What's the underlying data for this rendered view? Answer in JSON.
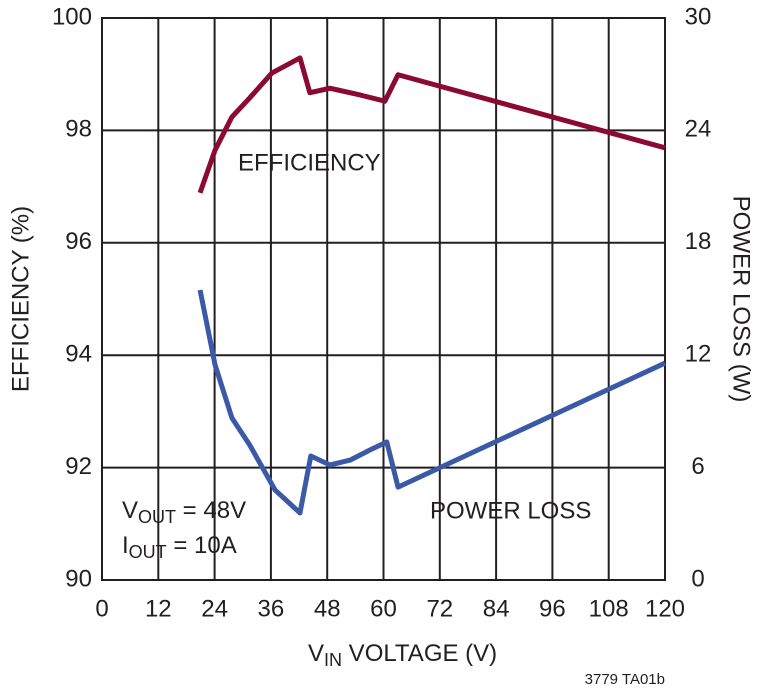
{
  "chart_data": {
    "type": "line",
    "x_label": {
      "main": "V",
      "sub": "IN",
      "rest": " VOLTAGE (V)"
    },
    "y_label": "EFFICIENCY (%)",
    "y2_label": "POWER LOSS (W)",
    "xlim": [
      0,
      120
    ],
    "xticks": [
      0,
      12,
      24,
      36,
      48,
      60,
      72,
      84,
      96,
      108,
      120
    ],
    "ylim": [
      90,
      100
    ],
    "yticks": [
      90,
      92,
      94,
      96,
      98,
      100
    ],
    "y2lim": [
      0,
      30
    ],
    "y2ticks": [
      0,
      6,
      12,
      18,
      24,
      30
    ],
    "grid": true,
    "series": [
      {
        "name": "EFFICIENCY",
        "color": "#8b0a32",
        "x": [
          20.9,
          24.1,
          27.7,
          31.5,
          36.2,
          42.2,
          44.3,
          48.6,
          55,
          60.3,
          63.1,
          120
        ],
        "values": [
          96.89,
          97.65,
          98.24,
          98.58,
          99.02,
          99.29,
          98.67,
          98.75,
          98.63,
          98.52,
          98.99,
          97.69
        ]
      },
      {
        "name": "POWER LOSS",
        "color": "#3a5aa8",
        "axis": "y2",
        "x": [
          20.9,
          24.1,
          27.7,
          31.5,
          36.9,
          42.2,
          44.5,
          48.6,
          52.9,
          57.1,
          60.7,
          63.1,
          120
        ],
        "values": [
          15.48,
          11.48,
          8.65,
          7.2,
          4.8,
          3.58,
          6.62,
          6.14,
          6.4,
          6.94,
          7.37,
          4.96,
          11.58
        ]
      }
    ],
    "annotations": [
      {
        "main": "V",
        "sub": "OUT",
        "rest": " = 48V"
      },
      {
        "main": "I",
        "sub": "OUT",
        "rest": " = 10A"
      }
    ],
    "footnote": "3779 TA01b"
  }
}
